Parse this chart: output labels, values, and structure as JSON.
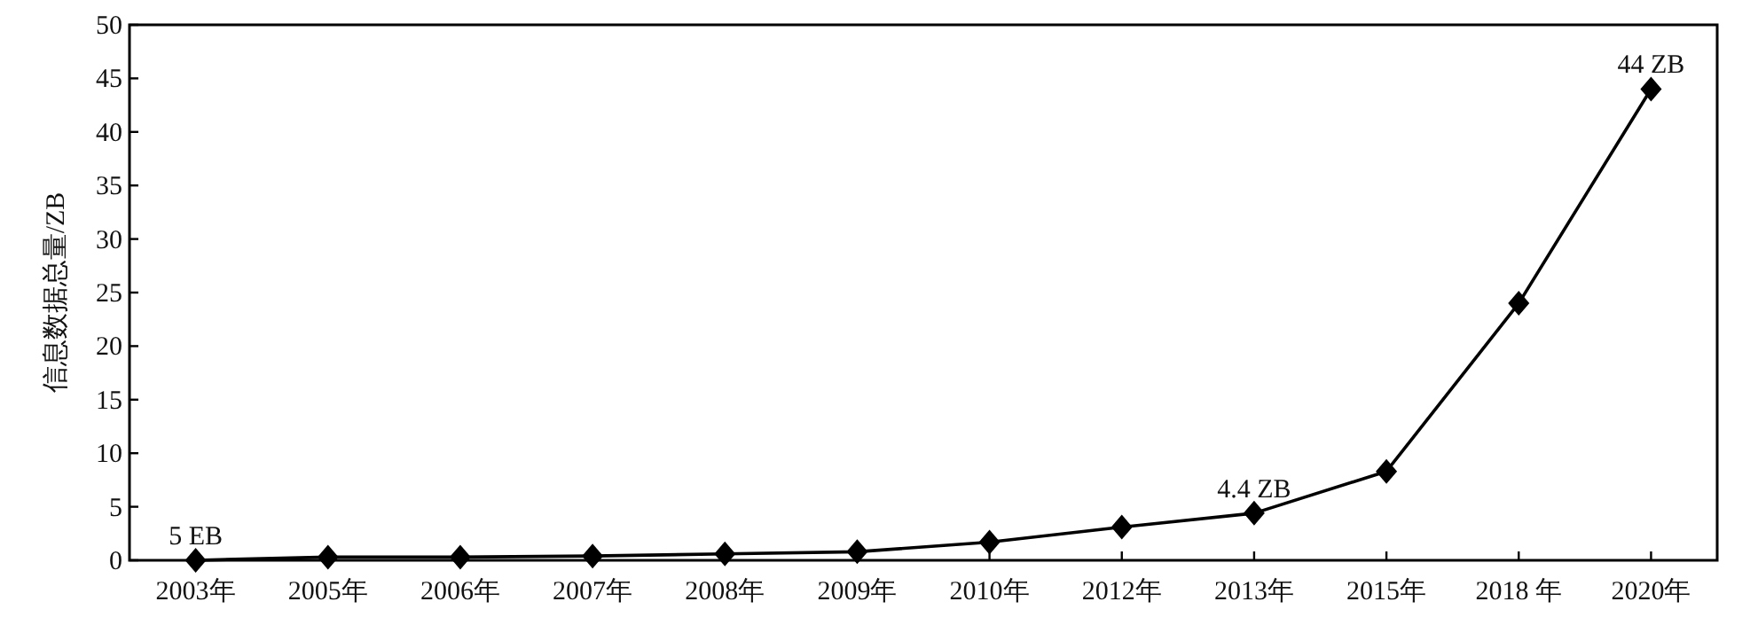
{
  "chart_data": {
    "type": "line",
    "ylabel": "信息数据总量/ZB",
    "categories": [
      "2003年",
      "2005年",
      "2006年",
      "2007年",
      "2008年",
      "2009年",
      "2010年",
      "2012年",
      "2013年",
      "2015年",
      "2018 年",
      "2020年"
    ],
    "series": [
      {
        "color": "#000000",
        "values": [
          0.005,
          0.3,
          0.3,
          0.4,
          0.6,
          0.8,
          1.7,
          3.1,
          4.4,
          8.3,
          24,
          44
        ]
      }
    ],
    "ylim": [
      0,
      50
    ],
    "yticks": [
      0,
      5,
      10,
      15,
      20,
      25,
      30,
      35,
      40,
      45,
      50
    ],
    "marker": "diamond",
    "line_style": "solid",
    "annotations": [
      {
        "text": "5 EB",
        "x": "2003年",
        "y": 0.005
      },
      {
        "text": "4.4 ZB",
        "x": "2013年",
        "y": 4.4
      },
      {
        "text": "44 ZB",
        "x": "2020年",
        "y": 44
      }
    ]
  }
}
